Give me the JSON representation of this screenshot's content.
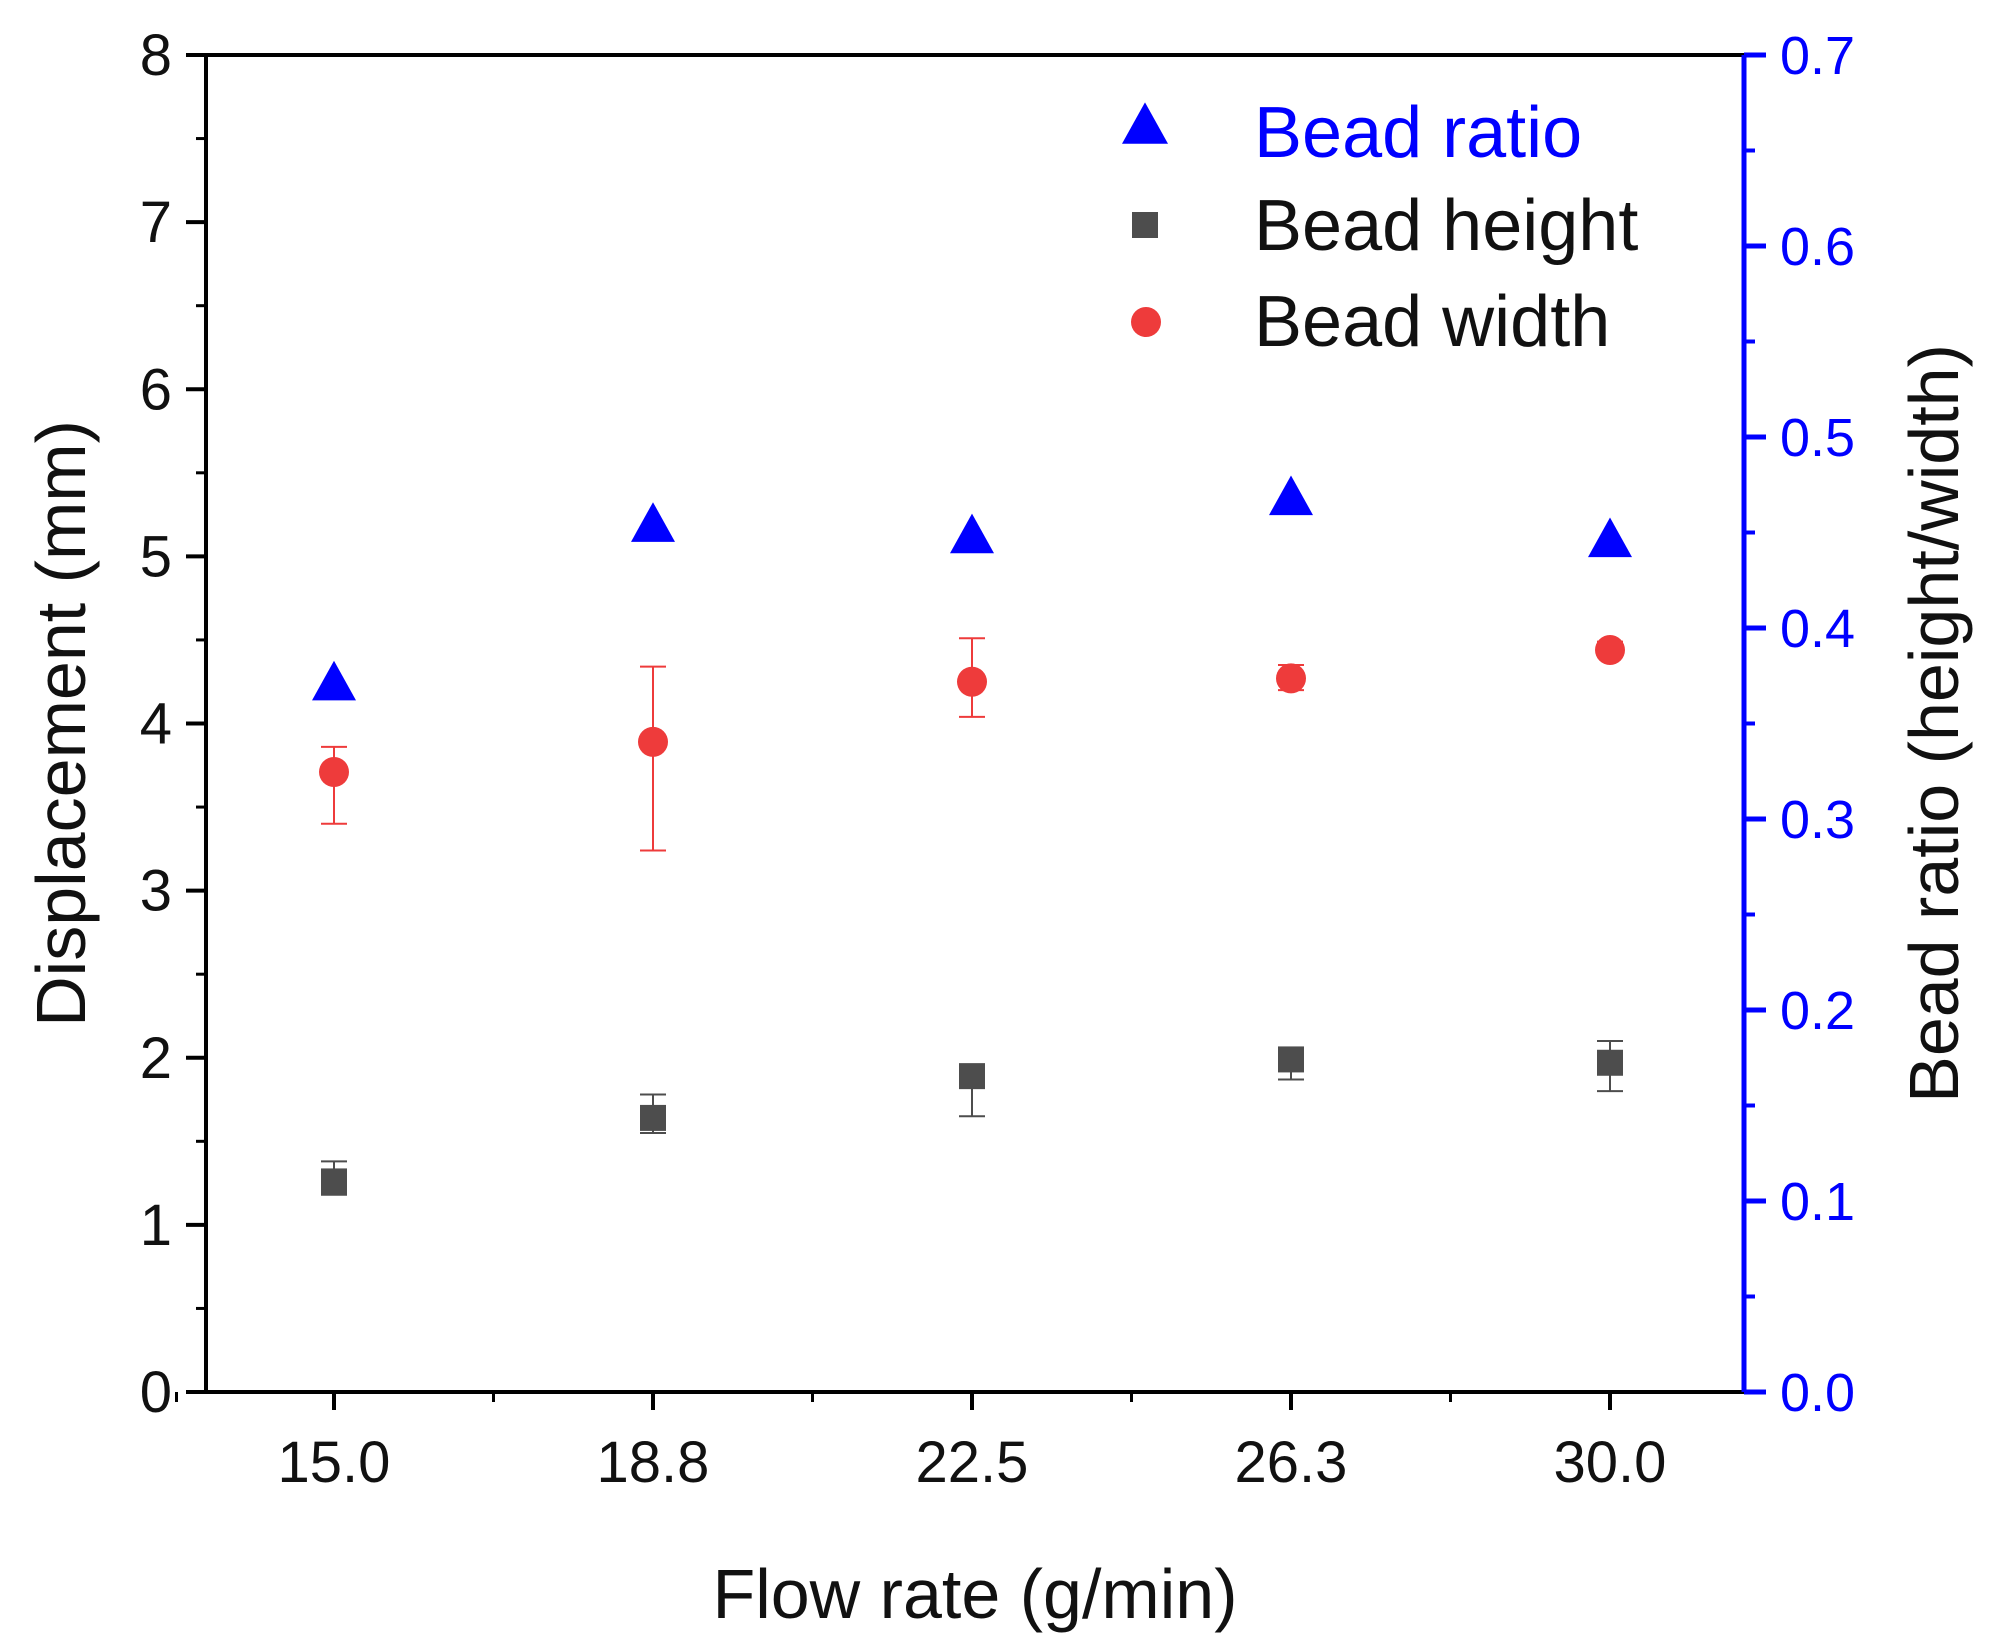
{
  "colors": {
    "ratio": "#0000ff",
    "height": "#4d4d4d",
    "width": "#ee3b3b",
    "axis": "#000000",
    "right_axis": "#0000ff"
  },
  "chart_data": {
    "type": "scatter",
    "xlabel": "Flow rate (g/min)",
    "ylabel": "Displacement (mm)",
    "y2label": "Bead ratio (height/width)",
    "categories": [
      "15.0",
      "18.8",
      "22.5",
      "26.3",
      "30.0"
    ],
    "ylim": [
      0,
      8
    ],
    "y2lim": [
      0,
      0.7
    ],
    "y_ticks": [
      "0",
      "1",
      "2",
      "3",
      "4",
      "5",
      "6",
      "7",
      "8"
    ],
    "y2_ticks": [
      "0.0",
      "0.1",
      "0.2",
      "0.3",
      "0.4",
      "0.5",
      "0.6",
      "0.7"
    ],
    "legend_position": "top-right",
    "grid": false,
    "series": [
      {
        "name": "Bead ratio",
        "axis": "right",
        "marker": "triangle",
        "values": [
          0.37,
          0.453,
          0.447,
          0.467,
          0.445
        ]
      },
      {
        "name": "Bead height",
        "axis": "left",
        "marker": "square",
        "values": [
          1.26,
          1.64,
          1.89,
          1.99,
          1.97
        ],
        "error_low": [
          1.18,
          1.55,
          1.65,
          1.87,
          1.8
        ],
        "error_high": [
          1.38,
          1.78,
          1.95,
          2.03,
          2.1
        ]
      },
      {
        "name": "Bead width",
        "axis": "left",
        "marker": "circle",
        "values": [
          3.71,
          3.89,
          4.25,
          4.27,
          4.44
        ],
        "error_low": [
          3.4,
          3.24,
          4.04,
          4.2,
          4.4
        ],
        "error_high": [
          3.86,
          4.34,
          4.51,
          4.35,
          4.49
        ]
      }
    ]
  }
}
